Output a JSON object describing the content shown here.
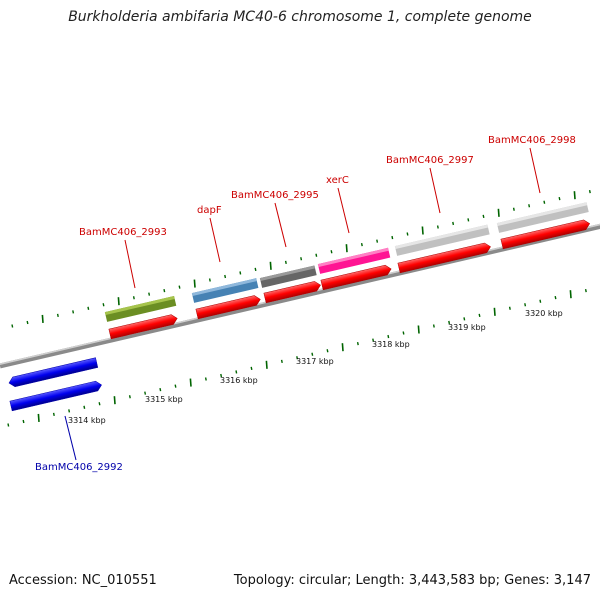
{
  "title": "Burkholderia ambifaria MC40-6 chromosome 1, complete genome",
  "footer": {
    "accession": "Accession: NC_010551",
    "stats": "Topology: circular; Length: 3,443,583 bp; Genes: 3,147"
  },
  "scale": {
    "labels": [
      "3314 kbp",
      "3315 kbp",
      "3316 kbp",
      "3317 kbp",
      "3318 kbp",
      "3319 kbp",
      "3320 kbp"
    ]
  },
  "genes": [
    {
      "name": "BamMC406_2992",
      "color": "#0000ee",
      "label_color": "#0000aa"
    },
    {
      "name": "BamMC406_2993",
      "color": "#6b8e23",
      "label_color": "#cc0000"
    },
    {
      "name": "dapF",
      "color": "#4682b4",
      "label_color": "#cc0000"
    },
    {
      "name": "BamMC406_2995",
      "color": "#666666",
      "label_color": "#cc0000"
    },
    {
      "name": "xerC",
      "color": "#ff1493",
      "label_color": "#cc0000"
    },
    {
      "name": "BamMC406_2997",
      "color": "#c0c0c0",
      "label_color": "#cc0000"
    },
    {
      "name": "BamMC406_2998",
      "color": "#c0c0c0",
      "label_color": "#cc0000"
    }
  ],
  "colors": {
    "backbone": "#888888",
    "cds": "#ff0000",
    "tick": "#006400"
  }
}
